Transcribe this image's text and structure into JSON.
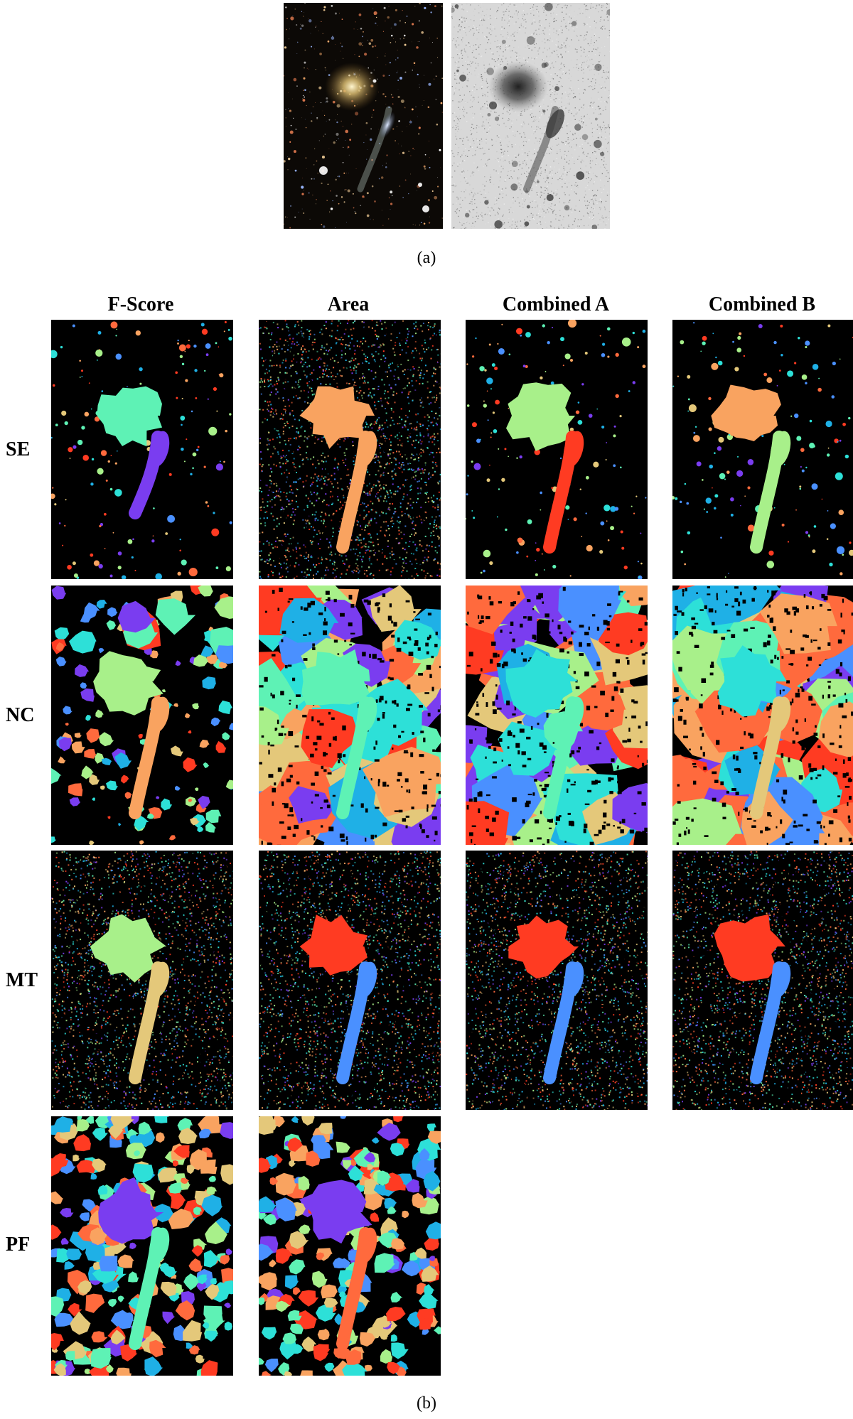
{
  "figure": {
    "caption_a": "(a)",
    "caption_b": "(b)",
    "columns": [
      "F-Score",
      "Area",
      "Combined A",
      "Combined B"
    ],
    "rows": [
      "SE",
      "NC",
      "MT",
      "PF"
    ]
  },
  "palette": [
    "#5ef2b5",
    "#f9a360",
    "#ff3b22",
    "#4a90ff",
    "#7a3df0",
    "#2de0d8",
    "#a8f08a",
    "#e4c87a",
    "#1fb0e6",
    "#ff6a3d"
  ],
  "panels": [
    {
      "id": "SE-F-Score",
      "style": "sparse",
      "bg": "#000000",
      "blob": "#5ef2b5",
      "tail": "#7a3df0",
      "tailFrac": 0.6
    },
    {
      "id": "SE-Area",
      "style": "noisy",
      "bg": "#000000",
      "blob": "#f9a360",
      "tail": "#f9a360",
      "tailFrac": 1.0
    },
    {
      "id": "SE-Combined A",
      "style": "sparse",
      "bg": "#000000",
      "blob": "#a8f08a",
      "tail": "#ff3b22",
      "tailFrac": 1.0
    },
    {
      "id": "SE-Combined B",
      "style": "sparse",
      "bg": "#000000",
      "blob": "#f9a360",
      "tail": "#a8f08a",
      "tailFrac": 1.0
    },
    {
      "id": "NC-F-Score",
      "style": "patchy",
      "bg": "#000000",
      "blob": "#a8f08a",
      "tail": "#f9a360",
      "tailFrac": 1.0
    },
    {
      "id": "NC-Area",
      "style": "voronoi",
      "bg": "#000000",
      "blob": "#5ef2b5",
      "tail": "#5ef2b5",
      "tailFrac": 1.0
    },
    {
      "id": "NC-Combined A",
      "style": "voronoi",
      "bg": "#000000",
      "blob": "#2de0d8",
      "tail": "#5ef2b5",
      "tailFrac": 1.0
    },
    {
      "id": "NC-Combined B",
      "style": "voronoi",
      "bg": "#000000",
      "blob": "#2de0d8",
      "tail": "#e4c87a",
      "tailFrac": 1.0
    },
    {
      "id": "MT-F-Score",
      "style": "noisy",
      "bg": "#000000",
      "blob": "#a8f08a",
      "tail": "#e4c87a",
      "tailFrac": 1.0
    },
    {
      "id": "MT-Area",
      "style": "noisy",
      "bg": "#000000",
      "blob": "#ff3b22",
      "tail": "#4a90ff",
      "tailFrac": 1.0
    },
    {
      "id": "MT-Combined A",
      "style": "noisy",
      "bg": "#000000",
      "blob": "#ff3b22",
      "tail": "#4a90ff",
      "tailFrac": 1.0
    },
    {
      "id": "MT-Combined B",
      "style": "noisy",
      "bg": "#000000",
      "blob": "#ff3b22",
      "tail": "#4a90ff",
      "tailFrac": 1.0
    },
    {
      "id": "PF-F-Score",
      "style": "cells",
      "bg": "#000000",
      "blob": "#7a3df0",
      "tail": "#5ef2b5",
      "tailFrac": 1.0
    },
    {
      "id": "PF-Area",
      "style": "cells",
      "bg": "#000000",
      "blob": "#7a3df0",
      "tail": "#ff6a3d",
      "tailFrac": 1.0
    }
  ]
}
